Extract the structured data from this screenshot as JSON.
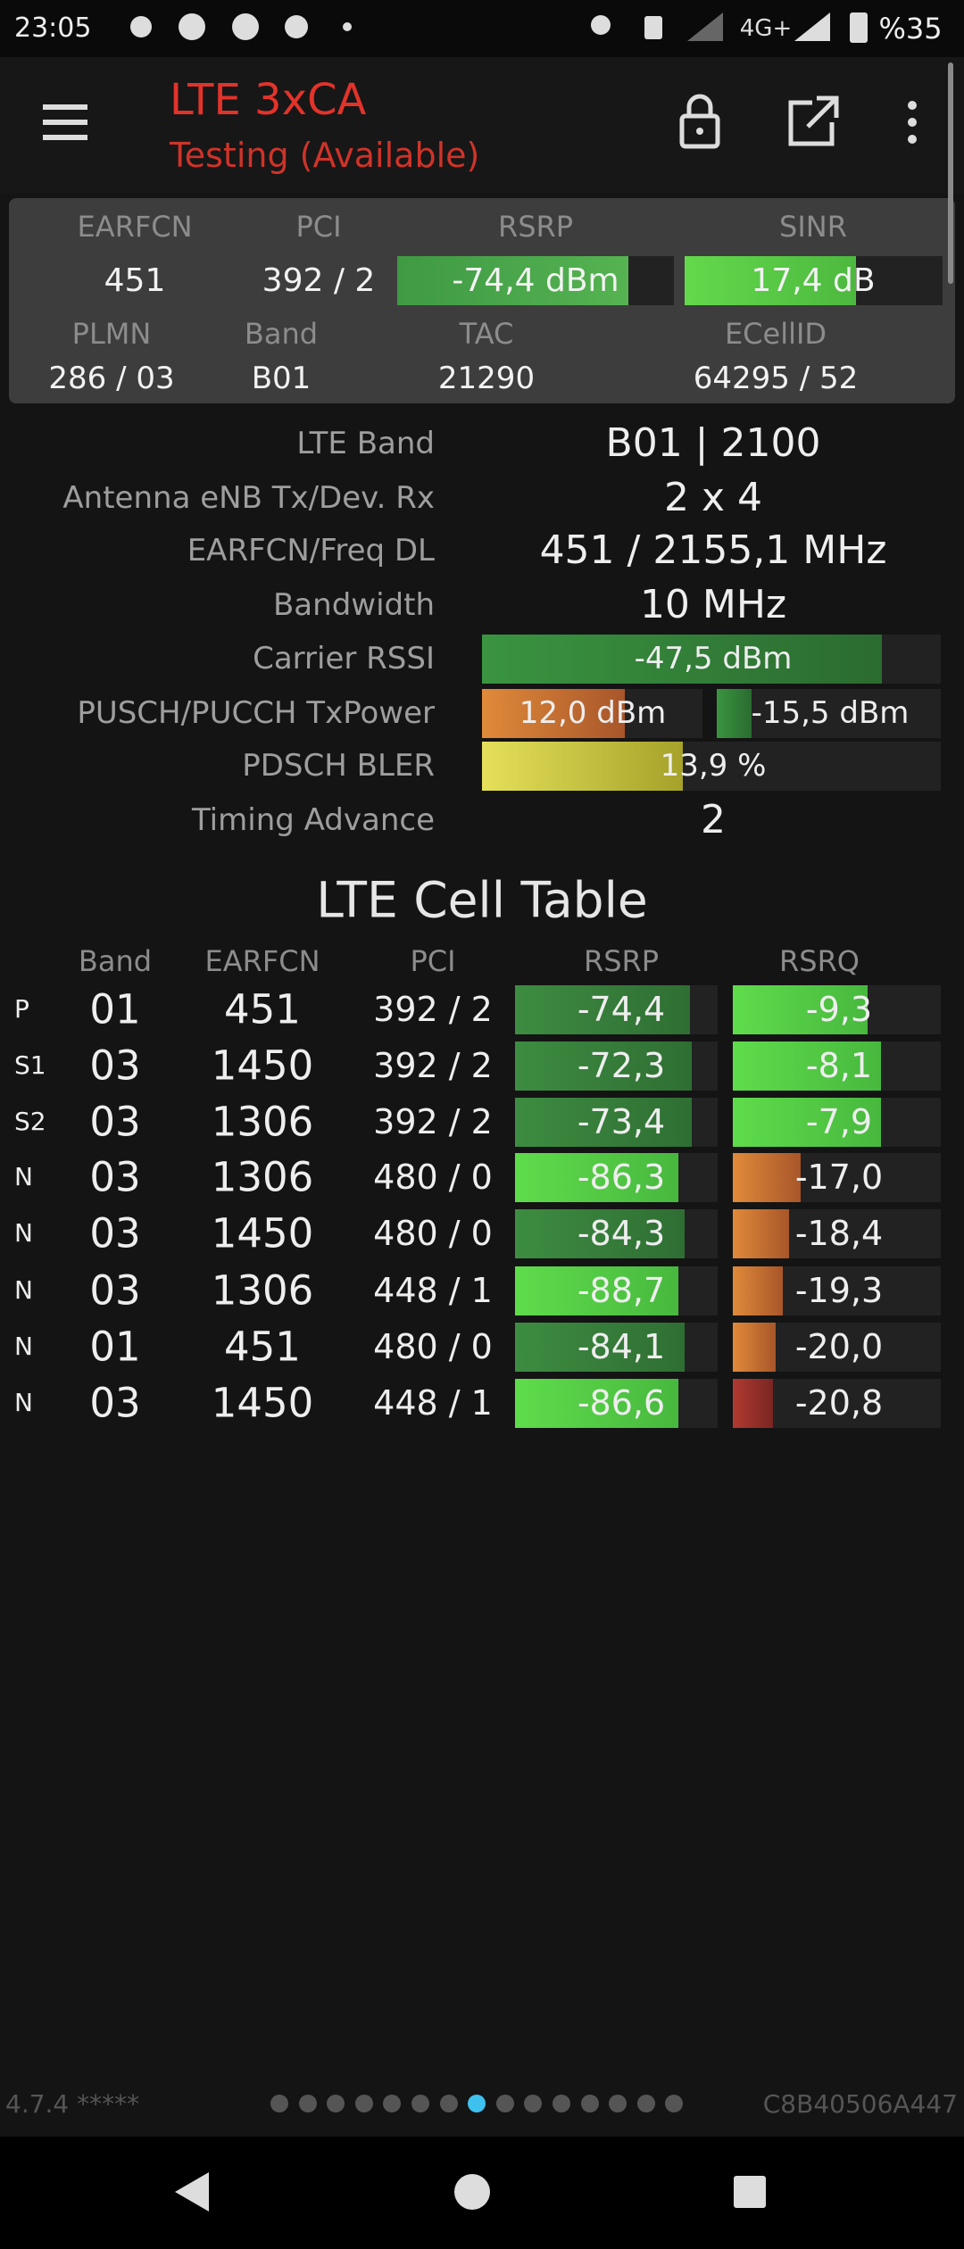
{
  "status_bar": {
    "time": "23:05",
    "network": "4G+",
    "battery": "%35"
  },
  "header": {
    "title": "LTE 3xCA",
    "subtitle": "Testing (Available)"
  },
  "summary": {
    "row1_labels": [
      "EARFCN",
      "PCI",
      "RSRP",
      "SINR"
    ],
    "row1_values": [
      "451",
      "392 / 2",
      "-74,4 dBm",
      "17,4 dB"
    ],
    "row2_labels": [
      "PLMN",
      "Band",
      "TAC",
      "ECellID"
    ],
    "row2_values": [
      "286 / 03",
      "B01",
      "21290",
      "64295 / 52"
    ]
  },
  "details": [
    {
      "label": "LTE Band",
      "value": "B01 | 2100"
    },
    {
      "label": "Antenna eNB Tx/Dev. Rx",
      "value": "2 x 4"
    },
    {
      "label": "EARFCN/Freq DL",
      "value": "451 / 2155,1 MHz"
    },
    {
      "label": "Bandwidth",
      "value": "10 MHz"
    },
    {
      "label": "Carrier RSSI",
      "value": "-47,5 dBm"
    },
    {
      "label": "PUSCH/PUCCH TxPower",
      "values": [
        "12,0 dBm",
        "-15,5 dBm"
      ]
    },
    {
      "label": "PDSCH BLER",
      "value": "13,9 %"
    },
    {
      "label": "Timing Advance",
      "value": "2"
    }
  ],
  "cell_table": {
    "title": "LTE Cell Table",
    "columns": [
      "Band",
      "EARFCN",
      "PCI",
      "RSRP",
      "RSRQ"
    ],
    "rows": [
      [
        "P",
        "01",
        "451",
        "392 / 2",
        "-74,4",
        "-9,3"
      ],
      [
        "S1",
        "03",
        "1450",
        "392 / 2",
        "-72,3",
        "-8,1"
      ],
      [
        "S2",
        "03",
        "1306",
        "392 / 2",
        "-73,4",
        "-7,9"
      ],
      [
        "N",
        "03",
        "1306",
        "480 / 0",
        "-86,3",
        "-17,0"
      ],
      [
        "N",
        "03",
        "1450",
        "480 / 0",
        "-84,3",
        "-18,4"
      ],
      [
        "N",
        "03",
        "1306",
        "448 / 1",
        "-88,7",
        "-19,3"
      ],
      [
        "N",
        "01",
        "451",
        "480 / 0",
        "-84,1",
        "-20,0"
      ],
      [
        "N",
        "03",
        "1450",
        "448 / 1",
        "-86,6",
        "-20,8"
      ]
    ]
  },
  "footer": {
    "version": "4.7.4 *****",
    "device_id": "C8B40506A447"
  }
}
